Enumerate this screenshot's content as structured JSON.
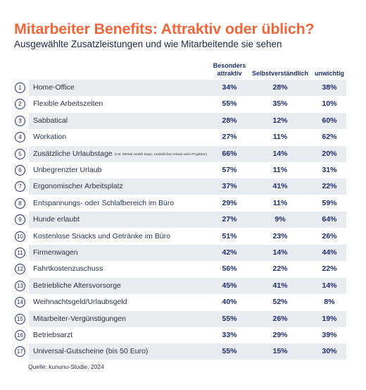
{
  "title": "Mitarbeiter Benefits: Attraktiv oder üblich?",
  "subtitle": "Ausgewählte Zusatzleistungen und wie Mitarbeitende sie sehen",
  "source": "Quelle: kununu-Studie, 2024",
  "colors": {
    "accent": "#f0673a",
    "navy": "#1f2e6e",
    "band": "#e8ebef"
  },
  "chart_data": {
    "type": "table",
    "columns": [
      "Besonders attraktiv",
      "Selbstverständlich",
      "unwichtig"
    ],
    "column_lines": [
      [
        "Besonders",
        "attraktiv"
      ],
      [
        "Selbstverständlich"
      ],
      [
        "unwichtig"
      ]
    ],
    "rows": [
      {
        "n": "1",
        "label": "Home-Office",
        "note": "",
        "values": [
          "34%",
          "28%",
          "38%"
        ]
      },
      {
        "n": "2",
        "label": "Flexible Arbeitszeiten",
        "note": "",
        "values": [
          "55%",
          "35%",
          "10%"
        ]
      },
      {
        "n": "3",
        "label": "Sabbatical",
        "note": "",
        "values": [
          "28%",
          "12%",
          "60%"
        ]
      },
      {
        "n": "4",
        "label": "Workation",
        "note": "",
        "values": [
          "27%",
          "11%",
          "62%"
        ]
      },
      {
        "n": "5",
        "label": "Zusätzliche Urlaubstage",
        "note": "(z.B. Mental Health Days, zusätzlicher Urlaub nach Projekten)",
        "values": [
          "66%",
          "14%",
          "20%"
        ]
      },
      {
        "n": "6",
        "label": "Unbegrenzter Urlaub",
        "note": "",
        "values": [
          "57%",
          "11%",
          "31%"
        ]
      },
      {
        "n": "7",
        "label": "Ergonomischer Arbeitsplatz",
        "note": "",
        "values": [
          "37%",
          "41%",
          "22%"
        ]
      },
      {
        "n": "8",
        "label": "Entspannungs- oder Schlafbereich im Büro",
        "note": "",
        "values": [
          "29%",
          "11%",
          "59%"
        ]
      },
      {
        "n": "9",
        "label": "Hunde erlaubt",
        "note": "",
        "values": [
          "27%",
          "9%",
          "64%"
        ]
      },
      {
        "n": "10",
        "label": "Kostenlose Snacks und Getränke im Büro",
        "note": "",
        "values": [
          "51%",
          "23%",
          "26%"
        ]
      },
      {
        "n": "11",
        "label": "Firmenwagen",
        "note": "",
        "values": [
          "42%",
          "14%",
          "44%"
        ]
      },
      {
        "n": "12",
        "label": "Fahrtkostenzuschuss",
        "note": "",
        "values": [
          "56%",
          "22%",
          "22%"
        ]
      },
      {
        "n": "13",
        "label": "Betriebliche Altersvorsorge",
        "note": "",
        "values": [
          "45%",
          "41%",
          "14%"
        ]
      },
      {
        "n": "14",
        "label": "Weihnachtsgeld/Urlaubsgeld",
        "note": "",
        "values": [
          "40%",
          "52%",
          "8%"
        ]
      },
      {
        "n": "15",
        "label": "Mitarbeiter-Vergünstigungen",
        "note": "",
        "values": [
          "55%",
          "26%",
          "19%"
        ]
      },
      {
        "n": "16",
        "label": "Betriebsarzt",
        "note": "",
        "values": [
          "33%",
          "29%",
          "39%"
        ]
      },
      {
        "n": "17",
        "label": "Universal-Gutscheine (bis 50 Euro)",
        "note": "",
        "values": [
          "55%",
          "15%",
          "30%"
        ]
      }
    ]
  }
}
